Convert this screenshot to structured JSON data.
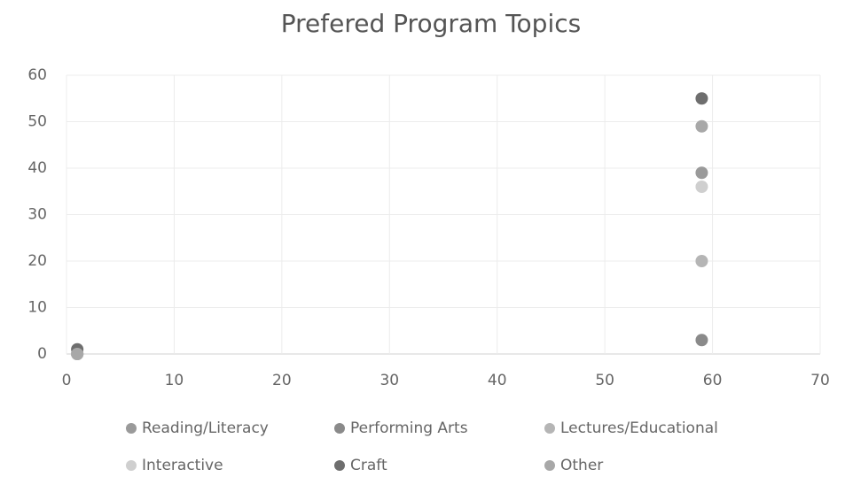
{
  "chart_data": {
    "type": "scatter",
    "title": "Prefered Program Topics",
    "series": [
      {
        "name": "Reading/Literacy",
        "color": "#9a9a9a",
        "x": [
          1,
          59
        ],
        "values": [
          0,
          39
        ]
      },
      {
        "name": "Performing Arts",
        "color": "#8a8a8a",
        "x": [
          1,
          59
        ],
        "values": [
          0,
          3
        ]
      },
      {
        "name": "Lectures/Educational",
        "color": "#b5b5b5",
        "x": [
          1,
          59
        ],
        "values": [
          0,
          20
        ]
      },
      {
        "name": "Interactive",
        "color": "#cfcfcf",
        "x": [
          1,
          59
        ],
        "values": [
          0,
          36
        ]
      },
      {
        "name": "Craft",
        "color": "#6e6e6e",
        "x": [
          1,
          59
        ],
        "values": [
          1,
          55
        ]
      },
      {
        "name": "Other",
        "color": "#a8a8a8",
        "x": [
          1,
          59
        ],
        "values": [
          0,
          49
        ]
      }
    ],
    "xlim": [
      0,
      70
    ],
    "xticks": [
      0,
      10,
      20,
      30,
      40,
      50,
      60,
      70
    ],
    "ylim": [
      0,
      60
    ],
    "yticks": [
      0,
      10,
      20,
      30,
      40,
      50,
      60
    ],
    "grid": true,
    "legend": "bottom"
  }
}
